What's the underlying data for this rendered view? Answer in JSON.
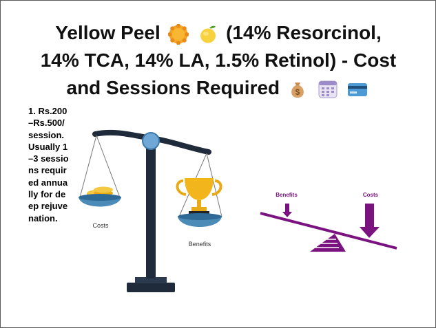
{
  "title": {
    "line1": "Yellow Peel",
    "line1_after": "(14% Resorcinol,",
    "line2": "14% TCA, 14% LA, 1.5% Retinol) - Cost",
    "line3": "and Sessions Required"
  },
  "body": {
    "text": "1. Rs.200–Rs.500/ session. Usually 1–3 sessions required annually for deep rejuvenation."
  },
  "illustration_balance": {
    "left_label": "Costs",
    "right_label": "Benefits"
  },
  "illustration_seesaw": {
    "left_label": "Benefits",
    "right_label": "Costs"
  },
  "icons": [
    "sun-icon",
    "lemon-icon",
    "money-bag-icon",
    "calendar-icon",
    "credit-card-icon",
    "coins-icon",
    "trophy-icon",
    "down-arrow-icon"
  ],
  "colors": {
    "accent_purple": "#7a127f",
    "scale_dark": "#1f2a3a",
    "pan_blue": "#4b8bb8",
    "gold": "#f2b51b"
  }
}
